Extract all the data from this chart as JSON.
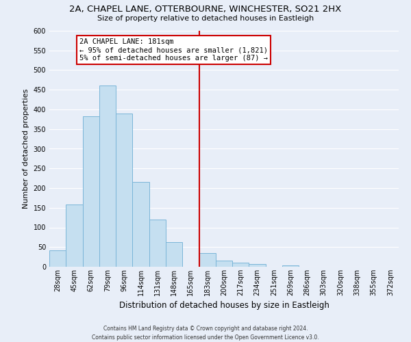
{
  "title": "2A, CHAPEL LANE, OTTERBOURNE, WINCHESTER, SO21 2HX",
  "subtitle": "Size of property relative to detached houses in Eastleigh",
  "xlabel": "Distribution of detached houses by size in Eastleigh",
  "ylabel": "Number of detached properties",
  "bin_labels": [
    "28sqm",
    "45sqm",
    "62sqm",
    "79sqm",
    "96sqm",
    "114sqm",
    "131sqm",
    "148sqm",
    "165sqm",
    "183sqm",
    "200sqm",
    "217sqm",
    "234sqm",
    "251sqm",
    "269sqm",
    "286sqm",
    "303sqm",
    "320sqm",
    "338sqm",
    "355sqm",
    "372sqm"
  ],
  "bar_heights": [
    42,
    158,
    383,
    460,
    390,
    215,
    120,
    62,
    0,
    35,
    16,
    10,
    7,
    0,
    4,
    0,
    0,
    0,
    0,
    0,
    0
  ],
  "bar_color": "#c5dff0",
  "bar_edge_color": "#7ab5d8",
  "vline_x_index": 9,
  "vline_color": "#cc0000",
  "annotation_title": "2A CHAPEL LANE: 181sqm",
  "annotation_line1": "← 95% of detached houses are smaller (1,821)",
  "annotation_line2": "5% of semi-detached houses are larger (87) →",
  "annotation_box_facecolor": "#ffffff",
  "annotation_box_edgecolor": "#cc0000",
  "ylim": [
    0,
    600
  ],
  "yticks": [
    0,
    50,
    100,
    150,
    200,
    250,
    300,
    350,
    400,
    450,
    500,
    550,
    600
  ],
  "footer_line1": "Contains HM Land Registry data © Crown copyright and database right 2024.",
  "footer_line2": "Contains public sector information licensed under the Open Government Licence v3.0.",
  "bg_color": "#e8eef8",
  "grid_color": "#ffffff",
  "title_fontsize": 9.5,
  "subtitle_fontsize": 8,
  "ylabel_fontsize": 8,
  "xlabel_fontsize": 8.5,
  "tick_fontsize": 7,
  "footer_fontsize": 5.5,
  "annotation_fontsize": 7.5
}
